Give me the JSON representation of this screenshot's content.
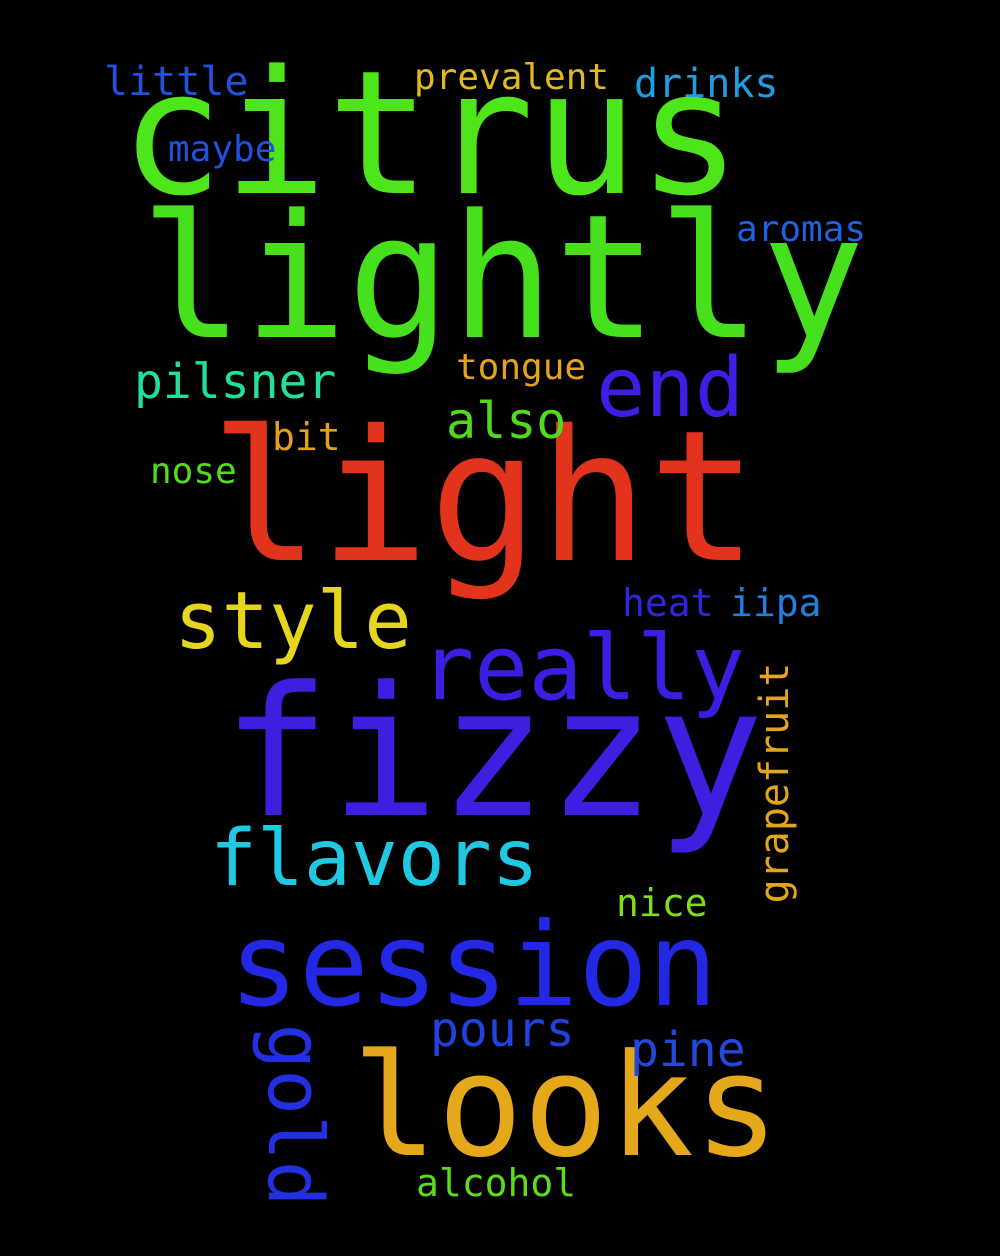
{
  "words": [
    {
      "text": "citrus",
      "color": "#4ce61b"
    },
    {
      "text": "lightly",
      "color": "#46e11c"
    },
    {
      "text": "light",
      "color": "#e2341c"
    },
    {
      "text": "fizzy",
      "color": "#3d1fe0"
    },
    {
      "text": "session",
      "color": "#2228e4"
    },
    {
      "text": "looks",
      "color": "#e5a81a"
    },
    {
      "text": "really",
      "color": "#3a1fe2"
    },
    {
      "text": "flavors",
      "color": "#1fc9e1"
    },
    {
      "text": "style",
      "color": "#e5d51e"
    },
    {
      "text": "end",
      "color": "#3c1fe2"
    },
    {
      "text": "pilsner",
      "color": "#22e09a"
    },
    {
      "text": "also",
      "color": "#52d91e"
    },
    {
      "text": "gold",
      "color": "#2230e2"
    },
    {
      "text": "pours",
      "color": "#2142dc"
    },
    {
      "text": "pine",
      "color": "#2149db"
    },
    {
      "text": "grapefruit",
      "color": "#e3a51c"
    },
    {
      "text": "prevalent",
      "color": "#e3b81c"
    },
    {
      "text": "little",
      "color": "#2152dd"
    },
    {
      "text": "drinks",
      "color": "#1f9de0"
    },
    {
      "text": "maybe",
      "color": "#2150df"
    },
    {
      "text": "aromas",
      "color": "#2160df"
    },
    {
      "text": "tongue",
      "color": "#e3a31c"
    },
    {
      "text": "bit",
      "color": "#e3a01c"
    },
    {
      "text": "nose",
      "color": "#55dc1c"
    },
    {
      "text": "heat",
      "color": "#2e25dc"
    },
    {
      "text": "iipa",
      "color": "#2180de"
    },
    {
      "text": "nice",
      "color": "#7ede1e"
    },
    {
      "text": "alcohol",
      "color": "#5edb1c"
    }
  ]
}
